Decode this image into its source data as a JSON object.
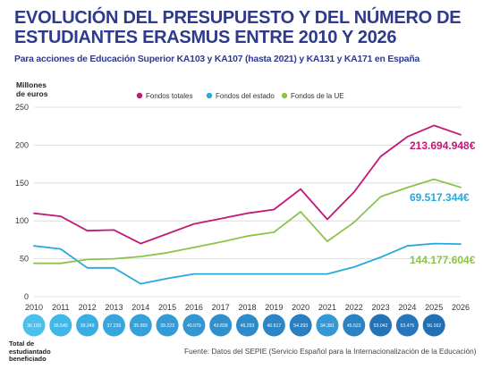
{
  "title": "EVOLUCIÓN DEL PRESUPUESTO Y DEL NÚMERO DE ESTUDIANTES ERASMUS ENTRE 2010 Y 2026",
  "subtitle": "Para acciones de Educación Superior KA103 y KA107 (hasta 2021) y KA131 y KA171 en España",
  "source": "Fuente: Datos del SEPIE (Servicio Español para la Internacionalización de la Educación)",
  "students_label": "Total de estudiantado beneficiado",
  "chart_data": {
    "type": "line",
    "ylabel": "Millones de euros",
    "ylim": [
      0,
      250
    ],
    "yticks": [
      0,
      50,
      100,
      150,
      200,
      250
    ],
    "grid": true,
    "legend_position": "top",
    "x": [
      "2010",
      "2011",
      "2012",
      "2013",
      "2014",
      "2015",
      "2016",
      "2017",
      "2018",
      "2019",
      "2020",
      "2021",
      "2022",
      "2023",
      "2024",
      "2025",
      "2026"
    ],
    "series": [
      {
        "name": "Fondos totales",
        "color": "#c2187a",
        "values": [
          110,
          106,
          87,
          88,
          70,
          83,
          96,
          103,
          110,
          115,
          142,
          102,
          138,
          185,
          211,
          226,
          213.7
        ],
        "end_label": "213.694.948€"
      },
      {
        "name": "Fondos del estado",
        "color": "#27a9df",
        "values": [
          67,
          63,
          38,
          38,
          17,
          24,
          30,
          30,
          30,
          30,
          30,
          30,
          39,
          52,
          67,
          70,
          69.5
        ],
        "end_label": "69.517.344€"
      },
      {
        "name": "Fondos de la UE",
        "color": "#8cc34b",
        "values": [
          44,
          44,
          49,
          50,
          53,
          58,
          65,
          72,
          80,
          85,
          112,
          73,
          98,
          132,
          144,
          155,
          144.2
        ],
        "end_label": "144.177.604€"
      }
    ],
    "students": [
      "36.183",
      "39.545",
      "39.249",
      "37.235",
      "35.955",
      "39.223",
      "40.079",
      "43.839",
      "46.293",
      "46.617",
      "54.293",
      "34.381",
      "45.522",
      "53.042",
      "53.475",
      "56.162",
      ""
    ]
  }
}
